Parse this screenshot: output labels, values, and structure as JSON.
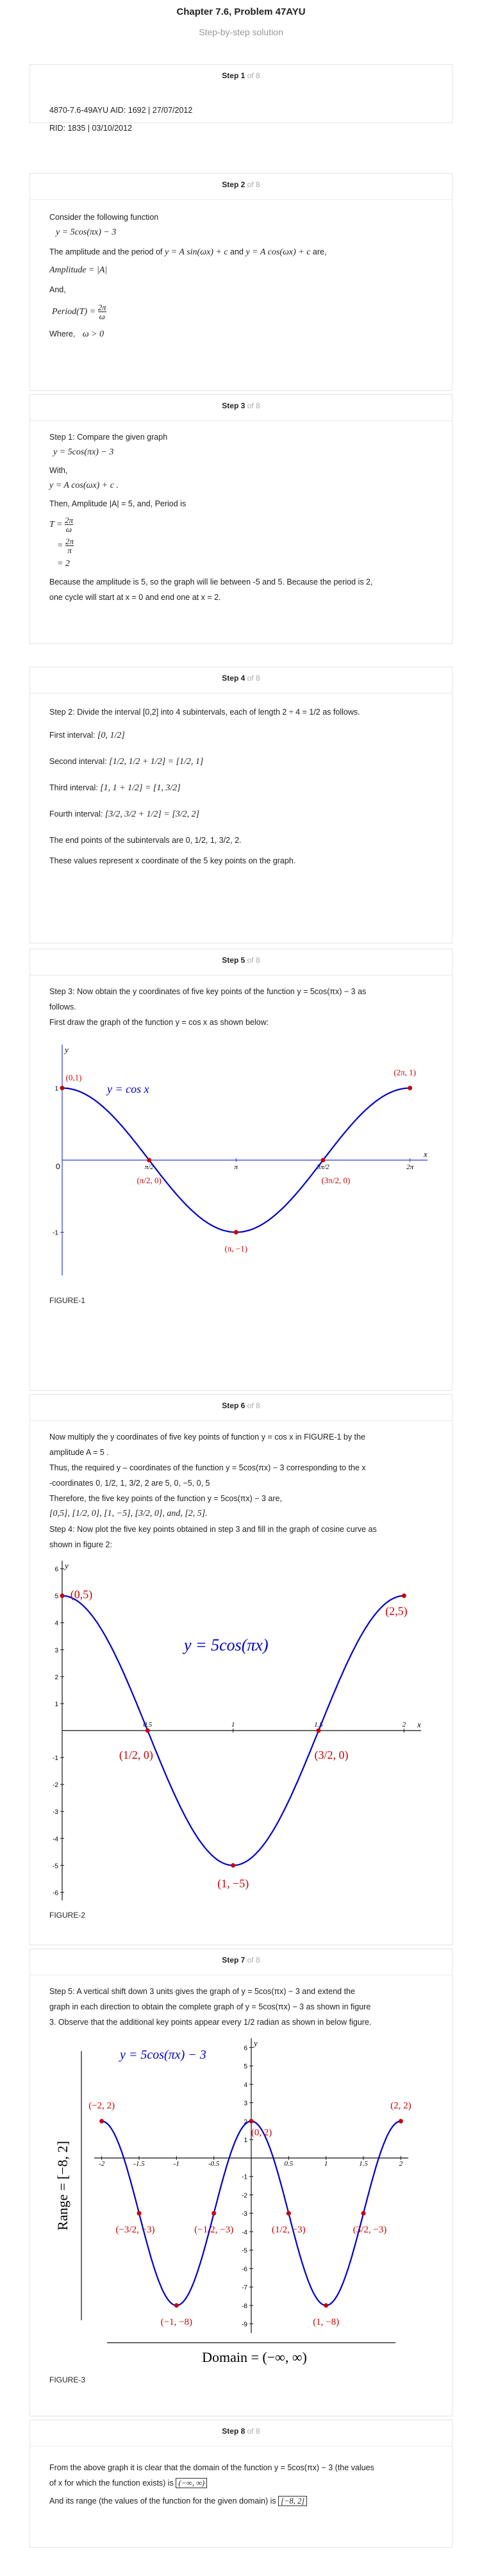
{
  "header": {
    "title": "Chapter 7.6, Problem 47AYU",
    "subtitle": "Step-by-step solution"
  },
  "total_steps": "8",
  "of_prefix": "of",
  "steps": [
    {
      "label": "Step 1",
      "lines": [
        "4870-7.6-49AYU AID: 1692 | 27/07/2012",
        "RID: 1835 | 03/10/2012"
      ]
    },
    {
      "label": "Step 2",
      "intro": "Consider the following function",
      "func": "y = 5cos(πx) − 3",
      "amp_text_a": "The amplitude and the period of",
      "amp_text_b": "y = A sin(ωx) + c",
      "amp_text_c": "and",
      "amp_text_d": "y = A cos(ωx) + c",
      "amp_text_e": "are,",
      "amplitude": "Amplitude = |A|",
      "and": "And,",
      "period_lhs": "Period(T) =",
      "period_num": "2π",
      "period_den": "ω",
      "where": "Where,",
      "where_cond": "ω > 0"
    },
    {
      "label": "Step 3",
      "line1": "Step 1: Compare the given graph",
      "func": "y = 5cos(πx) − 3",
      "with": "With,",
      "form": "y = A cos(ωx) + c .",
      "then": "Then, Amplitude |A| = 5, and, Period is",
      "t_lhs": "T =",
      "t1_num": "2π",
      "t1_den": "ω",
      "t2_lhs": "=",
      "t2_num": "2π",
      "t2_den": "π",
      "t3": "= 2",
      "concl_a": "Because the amplitude is 5, so the graph will lie between -5 and 5. Because the period is 2,",
      "concl_b": "one cycle will start at x = 0 and end one at x = 2."
    },
    {
      "label": "Step 4",
      "line1": "Step 2: Divide the interval [0,2] into 4 subintervals, each of length 2 ÷ 4 = 1/2 as follows.",
      "first": "First interval:",
      "first_val": "[0, 1/2]",
      "second": "Second interval:",
      "second_val": "[1/2, 1/2 + 1/2] = [1/2, 1]",
      "third": "Third interval:",
      "third_val": "[1, 1 + 1/2] = [1, 3/2]",
      "fourth": "Fourth interval:",
      "fourth_val": "[3/2, 3/2 + 1/2] = [3/2, 2]",
      "endpoints": "The end points of the subintervals are 0, 1/2, 1, 3/2, 2.",
      "represent": "These values represent x coordinate of the 5 key points on the graph."
    },
    {
      "label": "Step 5",
      "line1": "Step 3: Now obtain the y coordinates of five key points of the function  y = 5cos(πx) − 3  as",
      "line2": "follows.",
      "line3": "First draw the graph of the function  y = cos x  as shown below:",
      "figure": "FIGURE-1"
    },
    {
      "label": "Step 6",
      "line1": "Now multiply the y coordinates of five key points of function  y = cos x in FIGURE-1 by the",
      "line2": "amplitude  A = 5 .",
      "line3": "Thus, the required y – coordinates of the function  y = 5cos(πx) − 3  corresponding to the x",
      "line4": "-coordinates  0, 1/2, 1, 3/2, 2  are  5, 0, −5, 0, 5",
      "line5": "Therefore, the five key points of the function  y = 5cos(πx) − 3 are,",
      "line6": "[0,5], [1/2, 0], [1, −5], [3/2, 0], and, [2, 5].",
      "line7": "Step 4: Now plot the five key points obtained in step 3 and fill in the graph of cosine curve as",
      "line8": "shown in figure 2:",
      "figure": "FIGURE-2"
    },
    {
      "label": "Step 7",
      "line1": "Step 5: A vertical shift down 3 units gives the graph of  y = 5cos(πx) − 3  and extend the",
      "line2": "graph in each direction to obtain the complete graph of  y = 5cos(πx) − 3  as shown in figure",
      "line3": "3. Observe that the additional key points appear every  1/2  radian as shown in below figure.",
      "figure": "FIGURE-3"
    },
    {
      "label": "Step 8",
      "line1a": "From the above graph it is clear that the domain of the function  y = 5cos(πx) − 3  (the values",
      "line1b": "of x for which the function exists) is",
      "domain": "(−∞, ∞)",
      "line2a": "And its range (the values of the function for the given domain) is",
      "range": "[−8, 2]"
    }
  ],
  "chart_data": [
    {
      "type": "line",
      "function": "y = cos x",
      "legend": "y = cos x",
      "x_ticks": [
        "π/2",
        "π",
        "3π/2",
        "2π"
      ],
      "x_label": "x",
      "y_label": "y",
      "origin_label": "0",
      "y_ticks": [
        "1",
        "-1"
      ],
      "key_points": [
        {
          "x": 0,
          "y": 1,
          "label": "(0,1)"
        },
        {
          "x": 1.5708,
          "y": 0,
          "label": "(π/2, 0)"
        },
        {
          "x": 3.1416,
          "y": -1,
          "label": "(π, −1)"
        },
        {
          "x": 4.7124,
          "y": 0,
          "label": "(3π/2, 0)"
        },
        {
          "x": 6.2832,
          "y": 1,
          "label": "(2π, 1)"
        }
      ],
      "xlim": [
        0,
        6.6
      ],
      "ylim": [
        -1.6,
        1.6
      ],
      "colors": {
        "curve": "#0000cc",
        "points": "#cc0000"
      }
    },
    {
      "type": "line",
      "function": "y = 5cos(πx)",
      "legend": "y = 5cos(πx)",
      "x_ticks": [
        "0.5",
        "1",
        "1.5",
        "2"
      ],
      "y_ticks": [
        "6",
        "5",
        "4",
        "3",
        "2",
        "1",
        "-1",
        "-2",
        "-3",
        "-4",
        "-5",
        "-6"
      ],
      "x_label": "x",
      "y_label": "y",
      "key_points": [
        {
          "x": 0,
          "y": 5,
          "label": "(0,5)"
        },
        {
          "x": 0.5,
          "y": 0,
          "label": "(1/2, 0)"
        },
        {
          "x": 1,
          "y": -5,
          "label": "(1, −5)"
        },
        {
          "x": 1.5,
          "y": 0,
          "label": "(3/2, 0)"
        },
        {
          "x": 2,
          "y": 5,
          "label": "(2,5)"
        }
      ],
      "xlim": [
        0,
        2.1
      ],
      "ylim": [
        -6.3,
        6.3
      ],
      "colors": {
        "curve": "#0000cc",
        "points": "#cc0000"
      }
    },
    {
      "type": "line",
      "function": "y = 5cos(πx) − 3",
      "legend": "y = 5cos(πx) − 3",
      "x_ticks": [
        "-2",
        "-1.5",
        "-1",
        "-0.5",
        "0.5",
        "1",
        "1.5",
        "2"
      ],
      "y_ticks": [
        "6",
        "5",
        "4",
        "3",
        "2",
        "1",
        "-1",
        "-2",
        "-3",
        "-4",
        "-5",
        "-6",
        "-7",
        "-8",
        "-9"
      ],
      "y_label": "y",
      "range_label": "Range = [−8, 2]",
      "domain_label": "Domain = (−∞, ∞)",
      "key_points": [
        {
          "x": -2,
          "y": 2,
          "label": "(−2, 2)"
        },
        {
          "x": -1.5,
          "y": -3,
          "label": "(−3/2, −3)"
        },
        {
          "x": -1,
          "y": -8,
          "label": "(−1, −8)"
        },
        {
          "x": -0.5,
          "y": -3,
          "label": "(−1/2, −3)"
        },
        {
          "x": 0,
          "y": 2,
          "label": "(0, 2)"
        },
        {
          "x": 0.5,
          "y": -3,
          "label": "(1/2, −3)"
        },
        {
          "x": 1,
          "y": -8,
          "label": "(1, −8)"
        },
        {
          "x": 1.5,
          "y": -3,
          "label": "(3/2, −3)"
        },
        {
          "x": 2,
          "y": 2,
          "label": "(2, 2)"
        }
      ],
      "xlim": [
        -2.1,
        2.1
      ],
      "ylim": [
        -9.5,
        6.5
      ],
      "colors": {
        "curve": "#0000cc",
        "points": "#cc0000"
      }
    }
  ]
}
